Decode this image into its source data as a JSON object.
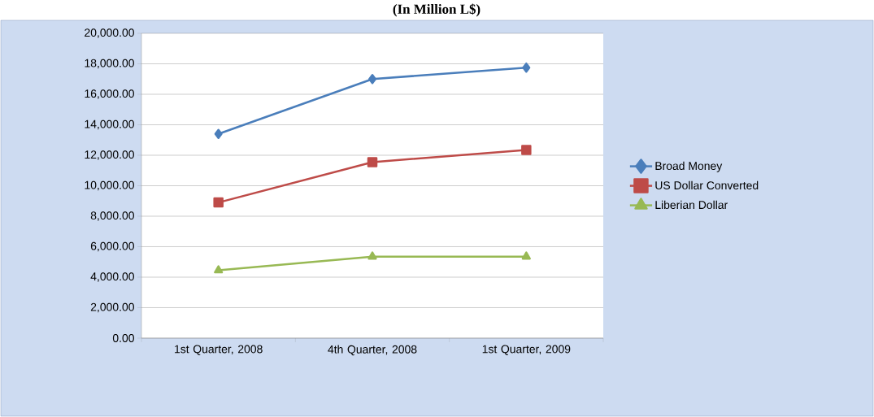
{
  "chart_data": {
    "type": "line",
    "title": "(In Million L$)",
    "categories": [
      "1st Quarter, 2008",
      "4th Quarter, 2008",
      "1st Quarter, 2009"
    ],
    "series": [
      {
        "name": "Broad Money",
        "color": "#4a7ebb",
        "marker": "diamond",
        "values": [
          13400,
          17000,
          17750
        ]
      },
      {
        "name": "US Dollar Converted",
        "color": "#be4b48",
        "marker": "square",
        "values": [
          8900,
          11550,
          12350
        ]
      },
      {
        "name": "Liberian Dollar",
        "color": "#98b954",
        "marker": "triangle",
        "values": [
          4450,
          5350,
          5350
        ]
      }
    ],
    "ylim": [
      0,
      20000
    ],
    "yticks": [
      {
        "value": 0,
        "label": "0.00"
      },
      {
        "value": 2000,
        "label": "2,000.00"
      },
      {
        "value": 4000,
        "label": "4,000.00"
      },
      {
        "value": 6000,
        "label": "6,000.00"
      },
      {
        "value": 8000,
        "label": "8,000.00"
      },
      {
        "value": 10000,
        "label": "10,000.00"
      },
      {
        "value": 12000,
        "label": "12,000.00"
      },
      {
        "value": 14000,
        "label": "14,000.00"
      },
      {
        "value": 16000,
        "label": "16,000.00"
      },
      {
        "value": 18000,
        "label": "18,000.00"
      },
      {
        "value": 20000,
        "label": "20,000.00"
      }
    ],
    "grid": "y",
    "legend": "right"
  }
}
